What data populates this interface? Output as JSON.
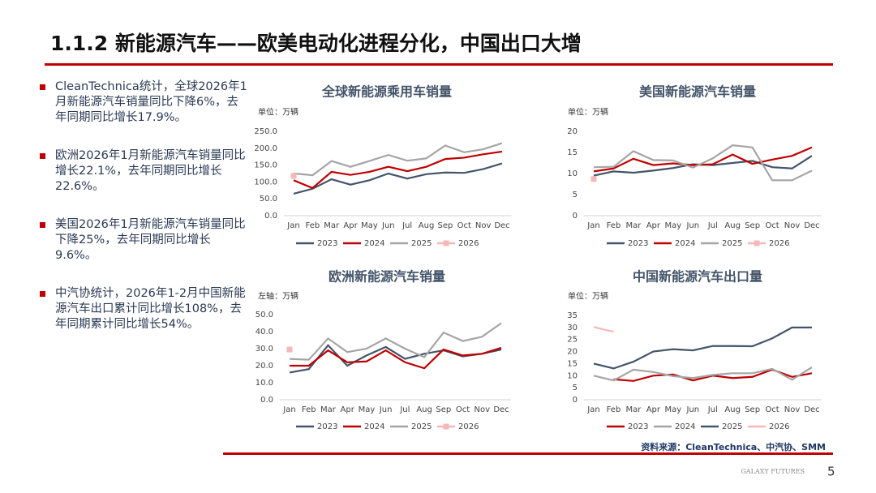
{
  "header": {
    "title": "1.1.2 新能源汽车——欧美电动化进程分化，中国出口大增"
  },
  "bullets": [
    "CleanTechnica统计，全球2026年1月新能源汽车销量同比下降6%，去年同期同比增长17.9%。",
    "欧洲2026年1月新能源汽车销量同比增长22.1%，去年同期同比增长22.6%。",
    "美国2026年1月新能源汽车销量同比下降25%，去年同期同比增长9.6%。",
    "中汽协统计，2026年1-2月中国新能源汽车出口累计同比增长108%，去年同期累计同比增长54%。"
  ],
  "chart_data": [
    {
      "type": "line",
      "title": "全球新能源乘用车销量",
      "y_label": "单位：万辆",
      "categories": [
        "Jan",
        "Feb",
        "Mar",
        "Apr",
        "May",
        "Jun",
        "Jul",
        "Aug",
        "Sep",
        "Oct",
        "Nov",
        "Dec"
      ],
      "ylim": [
        0,
        250
      ],
      "yticks": [
        {
          "value": 0,
          "label": "0.0"
        },
        {
          "value": 50,
          "label": "50.0"
        },
        {
          "value": 100,
          "label": "100.0"
        },
        {
          "value": 150,
          "label": "150.0"
        },
        {
          "value": 200,
          "label": "200.0"
        },
        {
          "value": 250,
          "label": "250.0"
        }
      ],
      "legend": "bottom",
      "series": [
        {
          "name": "2023",
          "color": "#44546a",
          "values": [
            65,
            80,
            108,
            92,
            105,
            125,
            110,
            123,
            128,
            127,
            138,
            155
          ]
        },
        {
          "name": "2024",
          "color": "#c00000",
          "values": [
            105,
            82,
            130,
            121,
            130,
            145,
            132,
            145,
            168,
            172,
            182,
            190
          ]
        },
        {
          "name": "2025",
          "color": "#a5a5a5",
          "values": [
            125,
            120,
            162,
            145,
            162,
            180,
            163,
            170,
            208,
            188,
            197,
            215
          ]
        },
        {
          "name": "2026",
          "color": "#f4b8b8",
          "values": [
            118,
            null,
            null,
            null,
            null,
            null,
            null,
            null,
            null,
            null,
            null,
            null
          ]
        }
      ]
    },
    {
      "type": "line",
      "title": "美国新能源汽车销量",
      "y_label": "单位：万辆",
      "categories": [
        "Jan",
        "Feb",
        "Mar",
        "Apr",
        "May",
        "Jun",
        "Jul",
        "Aug",
        "Sep",
        "Oct",
        "Nov",
        "Dec"
      ],
      "ylim": [
        0,
        20
      ],
      "yticks": [
        0,
        5,
        10,
        15,
        20
      ],
      "legend": "bottom",
      "series": [
        {
          "name": "2023",
          "color": "#44546a",
          "values": [
            9.5,
            10.5,
            10.2,
            10.7,
            11.3,
            12.2,
            12,
            12.5,
            13,
            11.5,
            11.2,
            14.2
          ]
        },
        {
          "name": "2024",
          "color": "#c00000",
          "values": [
            10.5,
            11.2,
            13.5,
            12,
            12.4,
            12,
            12.2,
            14.5,
            12.3,
            13.3,
            14.2,
            16.2
          ]
        },
        {
          "name": "2025",
          "color": "#a5a5a5",
          "values": [
            11.5,
            11.6,
            15.3,
            13.2,
            13.1,
            11.4,
            13.6,
            16.7,
            16.2,
            8.4,
            8.4,
            10.7
          ]
        },
        {
          "name": "2026",
          "color": "#f4b8b8",
          "values": [
            8.7,
            null,
            null,
            null,
            null,
            null,
            null,
            null,
            null,
            null,
            null,
            null
          ]
        }
      ]
    },
    {
      "type": "line",
      "title": "欧洲新能源汽车销量",
      "y_label": "左轴：万辆",
      "categories": [
        "Jan",
        "Feb",
        "Mar",
        "Apr",
        "May",
        "Jun",
        "Jul",
        "Aug",
        "Sep",
        "Oct",
        "Nov",
        "Dec"
      ],
      "ylim": [
        0,
        50
      ],
      "yticks": [
        {
          "value": 0,
          "label": "0.0"
        },
        {
          "value": 10,
          "label": "10.0"
        },
        {
          "value": 20,
          "label": "20.0"
        },
        {
          "value": 30,
          "label": "30.0"
        },
        {
          "value": 40,
          "label": "40.0"
        },
        {
          "value": 50,
          "label": "50.0"
        }
      ],
      "legend": "bottom",
      "series": [
        {
          "name": "2023",
          "color": "#44546a",
          "values": [
            16,
            18,
            32,
            20,
            26,
            31,
            24,
            27,
            29,
            25.5,
            27,
            29.5
          ]
        },
        {
          "name": "2024",
          "color": "#c00000",
          "values": [
            20,
            20,
            29,
            22,
            22.5,
            29,
            22,
            18.5,
            29.5,
            26,
            27,
            30.5
          ]
        },
        {
          "name": "2025",
          "color": "#a5a5a5",
          "values": [
            24,
            23.5,
            36,
            28,
            30,
            36,
            30,
            25,
            39.5,
            34.5,
            37,
            45
          ]
        },
        {
          "name": "2026",
          "color": "#f4b8b8",
          "values": [
            29.5,
            null,
            null,
            null,
            null,
            null,
            null,
            null,
            null,
            null,
            null,
            null
          ]
        }
      ]
    },
    {
      "type": "line",
      "title": "中国新能源汽车出口量",
      "y_label": "单位：万辆",
      "categories": [
        "Jan",
        "Feb",
        "Mar",
        "Apr",
        "May",
        "Jun",
        "Jul",
        "Aug",
        "Sep",
        "Oct",
        "Nov",
        "Dec"
      ],
      "ylim": [
        0,
        35
      ],
      "yticks": [
        0,
        5,
        10,
        15,
        20,
        25,
        30,
        35
      ],
      "legend": "bottom",
      "series": [
        {
          "name": "2023",
          "color": "#c00000",
          "values": [
            null,
            8.5,
            7.8,
            10,
            10.5,
            8,
            10,
            9,
            9.5,
            12.5,
            9.5,
            11
          ]
        },
        {
          "name": "2024",
          "color": "#a5a5a5",
          "values": [
            10,
            8,
            12.5,
            11.5,
            9.8,
            9,
            10.3,
            11,
            11,
            12.8,
            8.3,
            13.5
          ]
        },
        {
          "name": "2025",
          "color": "#44546a",
          "values": [
            15,
            13,
            15.8,
            20,
            21,
            20.5,
            22.3,
            22.3,
            22.2,
            25.5,
            30,
            30
          ]
        },
        {
          "name": "2026",
          "color": "#f4b8b8",
          "values": [
            30.2,
            28.2,
            null,
            null,
            null,
            null,
            null,
            null,
            null,
            null,
            null,
            null
          ]
        }
      ]
    }
  ],
  "source": "资料来源：CleanTechnica、中汽协、SMM",
  "footer": {
    "brand": "GALAXY FUTURES",
    "page": "5"
  }
}
